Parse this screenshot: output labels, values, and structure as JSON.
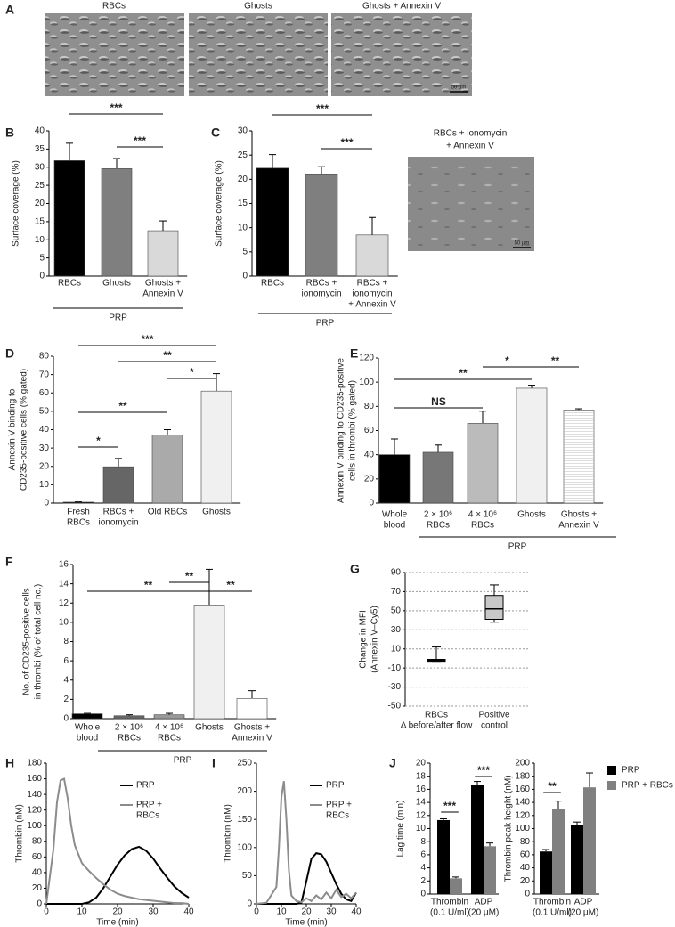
{
  "chart_data": [
    {
      "type": "bar",
      "panel": "B",
      "ylabel": [
        "Surface coverage (%)"
      ],
      "categories": [
        [
          "RBCs"
        ],
        [
          "Ghosts"
        ],
        [
          "Ghosts +",
          "Annexin V"
        ]
      ],
      "values": [
        31.8,
        29.6,
        12.5
      ],
      "errors": [
        4.8,
        2.8,
        2.7
      ],
      "colors": [
        "#000000",
        "#7f7f7f",
        "#d9d9d9"
      ],
      "ylim": [
        0,
        40
      ],
      "yticks": [
        0,
        5,
        10,
        15,
        20,
        25,
        30,
        35,
        40
      ],
      "group": "PRP",
      "annotations": [
        {
          "text": "***",
          "span": [
            0,
            2
          ]
        },
        {
          "text": "***",
          "span": [
            1,
            2
          ]
        }
      ]
    },
    {
      "type": "bar",
      "panel": "C",
      "ylabel": [
        "Surface coverage (%)"
      ],
      "categories": [
        [
          "RBCs"
        ],
        [
          "RBCs +",
          "ionomycin"
        ],
        [
          "RBCs +",
          "ionomycin",
          "+ Annexin V"
        ]
      ],
      "values": [
        22.3,
        21.1,
        8.5
      ],
      "errors": [
        2.8,
        1.5,
        3.6
      ],
      "colors": [
        "#000000",
        "#7f7f7f",
        "#d9d9d9"
      ],
      "ylim": [
        0,
        30
      ],
      "yticks": [
        0,
        5,
        10,
        15,
        20,
        25,
        30
      ],
      "group": "PRP",
      "annotations": [
        {
          "text": "***",
          "span": [
            0,
            2
          ]
        },
        {
          "text": "***",
          "span": [
            1,
            2
          ]
        }
      ]
    },
    {
      "type": "bar",
      "panel": "D",
      "ylabel": [
        "Annexin V binding to",
        "CD235-positive cells (% gated)"
      ],
      "categories": [
        [
          "Fresh",
          "RBCs"
        ],
        [
          "RBCs +",
          "ionomycin"
        ],
        [
          "Old RBCs"
        ],
        [
          "Ghosts"
        ]
      ],
      "values": [
        0.5,
        19.8,
        37,
        61
      ],
      "errors": [
        0.2,
        4.5,
        3,
        9.5
      ],
      "colors": [
        "#000000",
        "#666666",
        "#aaaaaa",
        "#f0f0f0"
      ],
      "ylim": [
        0,
        80
      ],
      "yticks": [
        0,
        10,
        20,
        30,
        40,
        50,
        60,
        70,
        80
      ],
      "annotations": [
        {
          "text": "***",
          "span": [
            0,
            3
          ]
        },
        {
          "text": "**",
          "span": [
            1,
            3
          ]
        },
        {
          "text": "*",
          "span": [
            2,
            3
          ]
        },
        {
          "text": "**",
          "span": [
            0,
            2
          ]
        },
        {
          "text": "*",
          "span": [
            0,
            1
          ]
        }
      ]
    },
    {
      "type": "bar",
      "panel": "E",
      "ylabel": [
        "Annexin V binding to CD235-positive",
        "cells in thrombi (% gated)"
      ],
      "categories": [
        [
          "Whole",
          "blood"
        ],
        [
          "2 × 10⁶",
          "RBCs"
        ],
        [
          "4 × 10⁶",
          "RBCs"
        ],
        [
          "Ghosts"
        ],
        [
          "Ghosts +",
          "Annexin V"
        ]
      ],
      "values": [
        40,
        42,
        66,
        95,
        77
      ],
      "errors": [
        13,
        6,
        10,
        2.5,
        1
      ],
      "colors": [
        "#000000",
        "#777777",
        "#bbbbbb",
        "#f0f0f0",
        "#ffffff"
      ],
      "hatch": [
        false,
        false,
        false,
        false,
        true
      ],
      "ylim": [
        0,
        120
      ],
      "yticks": [
        0,
        20,
        40,
        60,
        80,
        100,
        120
      ],
      "group": "PRP",
      "annotations": [
        {
          "text": "**",
          "span": [
            0,
            3
          ]
        },
        {
          "text": "*",
          "span": [
            2,
            3
          ]
        },
        {
          "text": "**",
          "span": [
            3,
            4
          ]
        },
        {
          "text": "NS",
          "span": [
            0,
            2
          ]
        }
      ]
    },
    {
      "type": "bar",
      "panel": "F",
      "ylabel": [
        "No. of CD235-positive cells",
        "in thrombi (% of total cell no.)"
      ],
      "categories": [
        [
          "Whole",
          "blood"
        ],
        [
          "2 × 10⁶",
          "RBCs"
        ],
        [
          "4 × 10⁶",
          "RBCs"
        ],
        [
          "Ghosts"
        ],
        [
          "Ghosts +",
          "Annexin V"
        ]
      ],
      "values": [
        0.5,
        0.3,
        0.4,
        11.8,
        2.1
      ],
      "errors": [
        0.05,
        0.1,
        0.15,
        3.7,
        0.8
      ],
      "colors": [
        "#000000",
        "#666666",
        "#999999",
        "#f0f0f0",
        "#ffffff"
      ],
      "ylim": [
        0,
        16
      ],
      "yticks": [
        0,
        2,
        4,
        6,
        8,
        10,
        12,
        14,
        16
      ],
      "group": "PRP",
      "annotations": [
        {
          "text": "**",
          "span": [
            0,
            3
          ]
        },
        {
          "text": "**",
          "span": [
            2,
            3
          ]
        },
        {
          "text": "**",
          "span": [
            3,
            4
          ]
        }
      ]
    },
    {
      "type": "box",
      "panel": "G",
      "ylabel": [
        "Change in MFI",
        "(Annexin V–Cy5)"
      ],
      "categories": [
        [
          "RBCs",
          "Δ before/after flow"
        ],
        [
          "Positive",
          "control"
        ]
      ],
      "boxes": [
        {
          "min": -3,
          "q1": -3,
          "median": -2,
          "q3": -1,
          "max": 12
        },
        {
          "min": 38,
          "q1": 41,
          "median": 52,
          "q3": 66,
          "max": 77
        }
      ],
      "color": "#c8c8c8",
      "grid": true,
      "ylim": [
        -50,
        90
      ],
      "yticks": [
        -50,
        -30,
        -10,
        10,
        30,
        50,
        70,
        90
      ]
    },
    {
      "type": "line",
      "panel": "H",
      "ylabel": [
        "Thrombin (nM)"
      ],
      "xlabel": "Time (min)",
      "x": [
        0,
        2,
        3,
        4,
        5,
        6,
        7,
        8,
        10,
        12,
        14,
        16,
        18,
        20,
        22,
        24,
        26,
        28,
        30,
        32,
        34,
        36,
        38,
        40
      ],
      "series": [
        {
          "name": [
            "PRP"
          ],
          "color": "#000000",
          "values": [
            0,
            0,
            0,
            0,
            0,
            0,
            0,
            0,
            0,
            2,
            8,
            20,
            35,
            50,
            62,
            70,
            73,
            68,
            58,
            45,
            33,
            22,
            14,
            8
          ]
        },
        {
          "name": [
            "PRP +",
            "RBCs"
          ],
          "color": "#8c8c8c",
          "values": [
            0,
            70,
            130,
            158,
            160,
            135,
            100,
            75,
            52,
            42,
            33,
            25,
            18,
            13,
            10,
            8,
            6,
            5,
            4,
            3,
            2,
            1,
            1,
            0
          ]
        }
      ],
      "xlim": [
        0,
        40
      ],
      "xticks": [
        0,
        10,
        20,
        30,
        40
      ],
      "ylim": [
        0,
        180
      ],
      "yticks": [
        0,
        20,
        40,
        60,
        80,
        100,
        120,
        140,
        160,
        180
      ]
    },
    {
      "type": "line",
      "panel": "I",
      "ylabel": [
        "Thrombin (nM)"
      ],
      "xlabel": "Time (min)",
      "x": [
        0,
        4,
        8,
        9,
        10,
        11,
        12,
        13,
        14,
        16,
        18,
        20,
        22,
        24,
        26,
        28,
        30,
        32,
        34,
        36,
        38,
        40
      ],
      "series": [
        {
          "name": [
            "PRP"
          ],
          "color": "#000000",
          "values": [
            0,
            0,
            0,
            0,
            0,
            0,
            0,
            0,
            0,
            0,
            2,
            40,
            80,
            90,
            88,
            75,
            55,
            35,
            18,
            8,
            5,
            20
          ]
        },
        {
          "name": [
            "PRP +",
            "RBCs"
          ],
          "color": "#8c8c8c",
          "values": [
            0,
            2,
            30,
            100,
            190,
            218,
            150,
            60,
            15,
            5,
            3,
            10,
            5,
            15,
            8,
            20,
            10,
            25,
            12,
            18,
            10,
            20
          ]
        }
      ],
      "xlim": [
        0,
        40
      ],
      "xticks": [
        0,
        10,
        20,
        30,
        40
      ],
      "ylim": [
        0,
        250
      ],
      "yticks": [
        0,
        50,
        100,
        150,
        200,
        250
      ]
    },
    {
      "type": "grouped_bar",
      "panel": "J",
      "ylabel": [
        "Lag time (min)"
      ],
      "categories": [
        [
          "Thrombin",
          "(0.1 U/ml)"
        ],
        [
          "ADP",
          "(20 μM)"
        ]
      ],
      "series": [
        {
          "color": "#000000",
          "values": [
            11.3,
            16.7
          ],
          "errors": [
            0.2,
            0.5
          ]
        },
        {
          "color": "#808080",
          "values": [
            2.4,
            7.3
          ],
          "errors": [
            0.2,
            0.5
          ]
        }
      ],
      "ylim": [
        0,
        20
      ],
      "yticks": [
        0,
        2,
        4,
        6,
        8,
        10,
        12,
        14,
        16,
        18,
        20
      ],
      "annotations": [
        {
          "text": "***",
          "category": 0
        },
        {
          "text": "***",
          "category": 1
        }
      ]
    },
    {
      "type": "grouped_bar",
      "ylabel": [
        "Thrombin peak height (nM)"
      ],
      "categories": [
        [
          "Thrombin",
          "(0.1 U/ml)"
        ],
        [
          "ADP",
          "(20 μM)"
        ]
      ],
      "series": [
        {
          "name": "PRP",
          "color": "#000000",
          "values": [
            65,
            105
          ],
          "errors": [
            3,
            5
          ]
        },
        {
          "name": "PRP + RBCs",
          "color": "#808080",
          "values": [
            130,
            163
          ],
          "errors": [
            12,
            22
          ]
        }
      ],
      "ylim": [
        0,
        200
      ],
      "yticks": [
        0,
        20,
        40,
        60,
        80,
        100,
        120,
        140,
        160,
        180,
        200
      ],
      "legend": true,
      "annotations": [
        {
          "text": "**",
          "category": 0
        }
      ]
    }
  ],
  "micrographs": {
    "panel": "A",
    "labels": [
      "RBCs",
      "Ghosts",
      "Ghosts + Annexin V"
    ],
    "scale_bar": "50 μm"
  },
  "inset": {
    "title": [
      "RBCs + ionomycin",
      "+ Annexin V"
    ],
    "scale_bar": "50 μm"
  }
}
